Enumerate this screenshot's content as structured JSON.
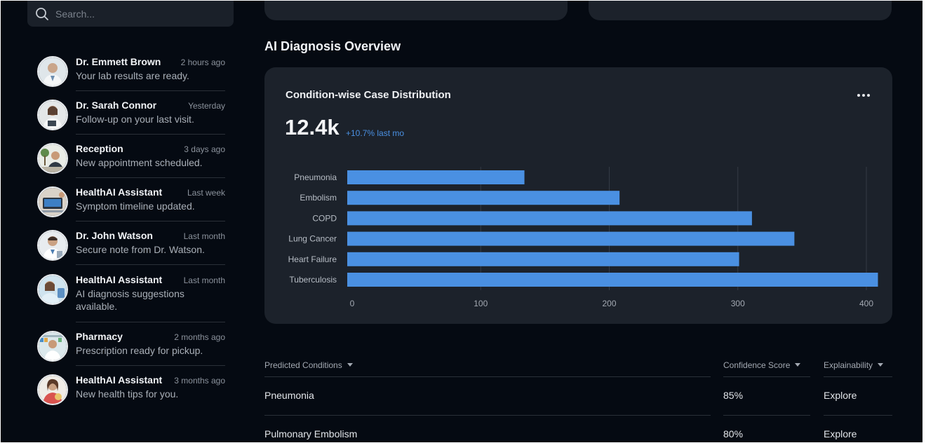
{
  "search": {
    "placeholder": "Search..."
  },
  "messages": [
    {
      "name": "Dr. Emmett Brown",
      "time": "2 hours ago",
      "text": "Your lab results are ready."
    },
    {
      "name": "Dr. Sarah Connor",
      "time": "Yesterday",
      "text": "Follow-up on your last visit."
    },
    {
      "name": "Reception",
      "time": "3 days ago",
      "text": "New appointment scheduled."
    },
    {
      "name": "HealthAI Assistant",
      "time": "Last week",
      "text": "Symptom timeline updated."
    },
    {
      "name": "Dr. John Watson",
      "time": "Last month",
      "text": "Secure note from Dr. Watson."
    },
    {
      "name": "HealthAI Assistant",
      "time": "Last month",
      "text": "AI diagnosis suggestions available."
    },
    {
      "name": "Pharmacy",
      "time": "2 months ago",
      "text": "Prescription ready for pickup."
    },
    {
      "name": "HealthAI Assistant",
      "time": "3 months ago",
      "text": "New health tips for you."
    }
  ],
  "section": {
    "title": "AI Diagnosis Overview"
  },
  "chart_card": {
    "title": "Condition-wise Case Distribution",
    "big_number": "12.4k",
    "trend": "+10.7% last mo",
    "more_icon": "more-horizontal-icon"
  },
  "chart_data": {
    "type": "bar",
    "orientation": "horizontal",
    "title": "Condition-wise Case Distribution",
    "categories": [
      "Pneumonia",
      "Embolism",
      "COPD",
      "Lung Cancer",
      "Heart Failure",
      "Tuberculosis"
    ],
    "values": [
      134,
      208,
      311,
      344,
      301,
      409
    ],
    "xlim": [
      0,
      400
    ],
    "xticks": [
      "0",
      "100",
      "200",
      "300",
      "400"
    ],
    "grid": true,
    "bar_color": "#4a90e2"
  },
  "table": {
    "headers": [
      "Predicted Conditions",
      "Confidence Score",
      "Explainability"
    ],
    "rows": [
      {
        "condition": "Pneumonia",
        "confidence": "85%",
        "action": "Explore"
      },
      {
        "condition": "Pulmonary Embolism",
        "confidence": "80%",
        "action": "Explore"
      }
    ]
  },
  "colors": {
    "background": "#050a12",
    "card": "#1c222b",
    "accent": "#4a90e2"
  }
}
